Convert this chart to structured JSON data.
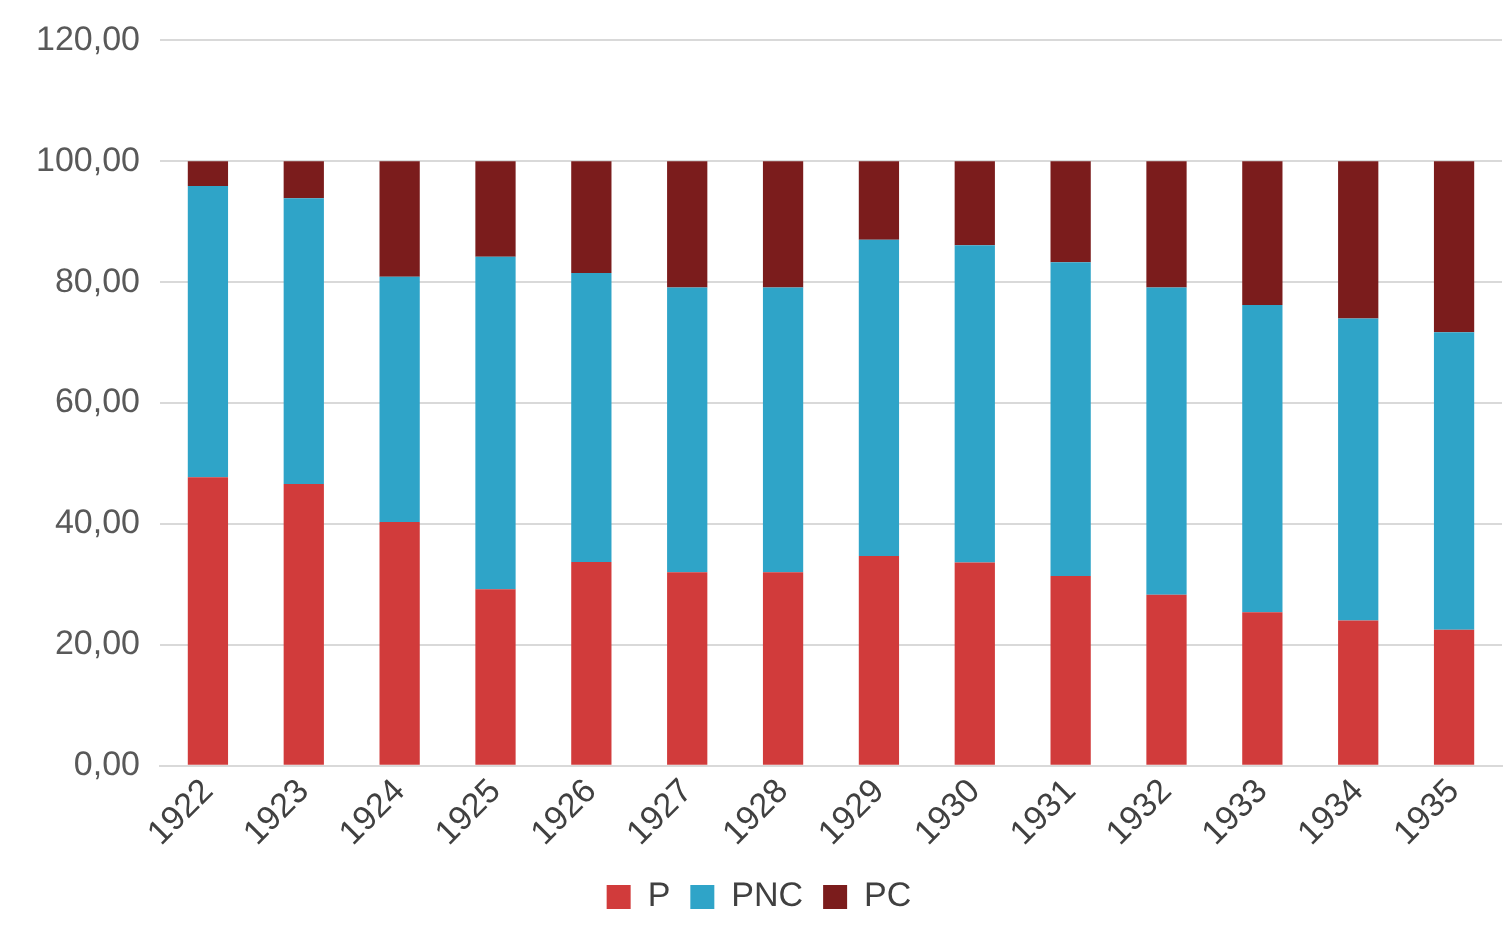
{
  "chart_data": {
    "type": "bar",
    "stacked": true,
    "categories": [
      "1922",
      "1923",
      "1924",
      "1925",
      "1926",
      "1927",
      "1928",
      "1929",
      "1930",
      "1931",
      "1932",
      "1933",
      "1934",
      "1935"
    ],
    "series": [
      {
        "name": "P",
        "color": "#d13b3b",
        "values": [
          47.7,
          46.6,
          40.3,
          29.2,
          33.7,
          32.0,
          32.0,
          34.7,
          33.6,
          31.4,
          28.3,
          25.4,
          24.0,
          22.5
        ]
      },
      {
        "name": "PNC",
        "color": "#2fa4c8",
        "values": [
          48.2,
          47.3,
          40.6,
          55.0,
          47.8,
          47.1,
          47.1,
          52.3,
          52.5,
          51.9,
          50.8,
          50.8,
          50.0,
          49.2
        ]
      },
      {
        "name": "PC",
        "color": "#7b1c1c",
        "values": [
          4.1,
          6.1,
          19.1,
          15.8,
          18.5,
          20.9,
          20.9,
          13.0,
          13.9,
          16.7,
          20.9,
          23.8,
          26.0,
          28.3
        ]
      }
    ],
    "ylim": [
      0,
      120
    ],
    "yticks": [
      {
        "value": 0,
        "label": "0,00"
      },
      {
        "value": 20,
        "label": "20,00"
      },
      {
        "value": 40,
        "label": "40,00"
      },
      {
        "value": 60,
        "label": "60,00"
      },
      {
        "value": 80,
        "label": "80,00"
      },
      {
        "value": 100,
        "label": "100,00"
      },
      {
        "value": 120,
        "label": "120,00"
      }
    ],
    "grid": "y",
    "legend": "bottom"
  }
}
